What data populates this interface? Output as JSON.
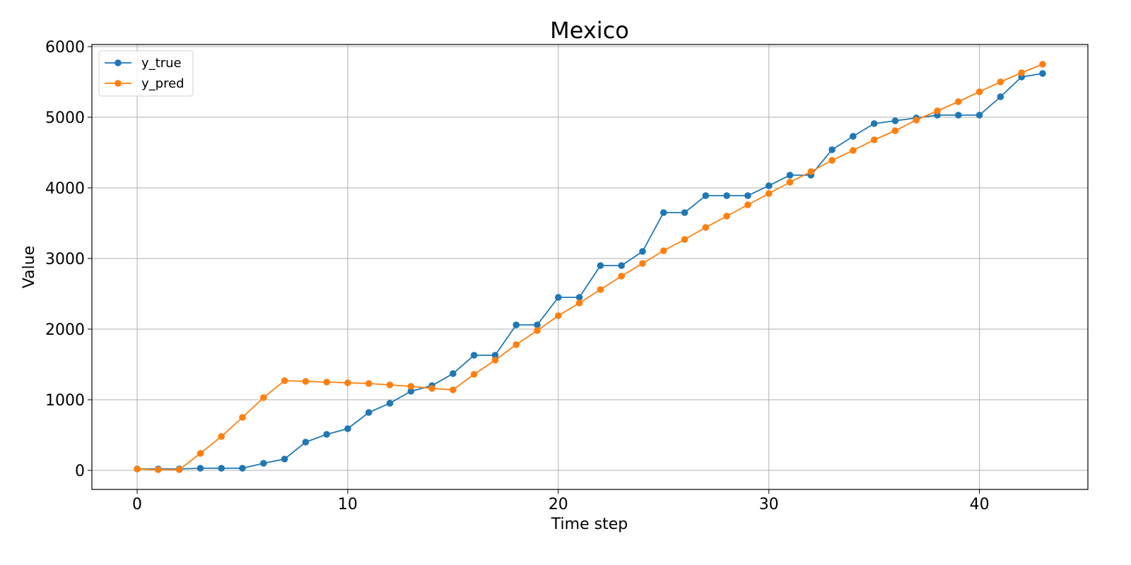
{
  "chart_data": {
    "type": "line",
    "title": "Mexico",
    "xlabel": "Time step",
    "ylabel": "Value",
    "xlim": [
      -2.15,
      45.15
    ],
    "ylim": [
      -270,
      6030
    ],
    "xticks": [
      0,
      10,
      20,
      30,
      40
    ],
    "yticks": [
      0,
      1000,
      2000,
      3000,
      4000,
      5000,
      6000
    ],
    "grid": true,
    "legend_position": "upper left",
    "x": [
      0,
      1,
      2,
      3,
      4,
      5,
      6,
      7,
      8,
      9,
      10,
      11,
      12,
      13,
      14,
      15,
      16,
      17,
      18,
      19,
      20,
      21,
      22,
      23,
      24,
      25,
      26,
      27,
      28,
      29,
      30,
      31,
      32,
      33,
      34,
      35,
      36,
      37,
      38,
      39,
      40,
      41,
      42,
      43
    ],
    "series": [
      {
        "name": "y_true",
        "color": "#1f77b4",
        "marker": "circle",
        "values": [
          20,
          20,
          20,
          30,
          30,
          30,
          100,
          160,
          400,
          510,
          590,
          820,
          950,
          1120,
          1200,
          1370,
          1630,
          1630,
          2060,
          2060,
          2450,
          2450,
          2900,
          2900,
          3100,
          3650,
          3650,
          3890,
          3890,
          3890,
          4030,
          4180,
          4180,
          4540,
          4730,
          4910,
          4950,
          4990,
          5030,
          5030,
          5030,
          5290,
          5570,
          5620
        ]
      },
      {
        "name": "y_pred",
        "color": "#ff7f0e",
        "marker": "circle",
        "values": [
          20,
          10,
          10,
          240,
          480,
          750,
          1030,
          1270,
          1260,
          1250,
          1240,
          1230,
          1210,
          1190,
          1160,
          1140,
          1360,
          1560,
          1780,
          1980,
          2190,
          2370,
          2560,
          2750,
          2930,
          3110,
          3270,
          3440,
          3600,
          3760,
          3920,
          4080,
          4230,
          4390,
          4530,
          4680,
          4810,
          4960,
          5090,
          5220,
          5360,
          5500,
          5630,
          5750
        ]
      }
    ]
  }
}
